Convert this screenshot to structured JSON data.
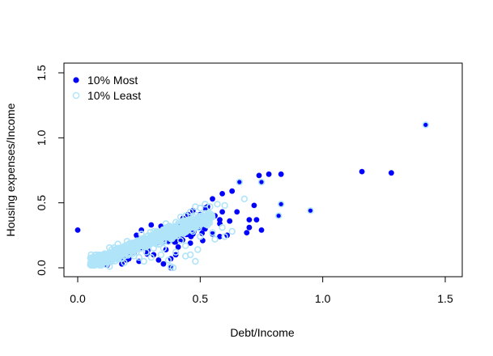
{
  "chart_data": {
    "type": "scatter",
    "title": "",
    "xlabel": "Debt/Income",
    "ylabel": "Housing expenses/Income",
    "xlim": [
      0.0,
      1.5
    ],
    "ylim": [
      0.0,
      1.5
    ],
    "xticks": [
      "0.0",
      "0.5",
      "1.0",
      "1.5"
    ],
    "yticks": [
      "0.0",
      "0.5",
      "1.0",
      "1.5"
    ],
    "grid": false,
    "legend_position": "top-left",
    "series": [
      {
        "name": "10% Most",
        "marker": "filled-circle",
        "color": "#0000ff",
        "points": [
          [
            0.0,
            0.29
          ],
          [
            1.42,
            1.1
          ],
          [
            1.28,
            0.73
          ],
          [
            1.16,
            0.74
          ],
          [
            0.95,
            0.44
          ],
          [
            0.83,
            0.72
          ],
          [
            0.83,
            0.49
          ],
          [
            0.82,
            0.4
          ],
          [
            0.78,
            0.72
          ],
          [
            0.74,
            0.71
          ],
          [
            0.75,
            0.66
          ],
          [
            0.75,
            0.29
          ],
          [
            0.73,
            0.37
          ],
          [
            0.72,
            0.48
          ],
          [
            0.7,
            0.37
          ],
          [
            0.7,
            0.31
          ],
          [
            0.69,
            0.27
          ],
          [
            0.66,
            0.66
          ],
          [
            0.65,
            0.43
          ],
          [
            0.63,
            0.59
          ],
          [
            0.62,
            0.36
          ],
          [
            0.61,
            0.25
          ],
          [
            0.59,
            0.57
          ],
          [
            0.59,
            0.43
          ],
          [
            0.58,
            0.37
          ],
          [
            0.58,
            0.34
          ],
          [
            0.58,
            0.24
          ],
          [
            0.56,
            0.4
          ],
          [
            0.55,
            0.53
          ],
          [
            0.55,
            0.26
          ],
          [
            0.53,
            0.47
          ],
          [
            0.52,
            0.46
          ],
          [
            0.52,
            0.3
          ],
          [
            0.51,
            0.21
          ],
          [
            0.5,
            0.41
          ],
          [
            0.49,
            0.36
          ],
          [
            0.48,
            0.32
          ],
          [
            0.47,
            0.26
          ],
          [
            0.46,
            0.19
          ],
          [
            0.45,
            0.41
          ],
          [
            0.44,
            0.35
          ],
          [
            0.43,
            0.28
          ],
          [
            0.42,
            0.22
          ],
          [
            0.41,
            0.33
          ],
          [
            0.41,
            0.16
          ],
          [
            0.4,
            0.1
          ],
          [
            0.4,
            0.2
          ],
          [
            0.39,
            0.27
          ],
          [
            0.38,
            0.0
          ],
          [
            0.38,
            0.07
          ],
          [
            0.36,
            0.14
          ],
          [
            0.35,
            0.03
          ],
          [
            0.33,
            0.06
          ],
          [
            0.31,
            0.1
          ],
          [
            0.3,
            0.33
          ],
          [
            0.29,
            0.22
          ],
          [
            0.26,
            0.29
          ],
          [
            0.25,
            0.05
          ],
          [
            0.24,
            0.25
          ],
          [
            0.22,
            0.18
          ],
          [
            0.21,
            0.12
          ],
          [
            0.2,
            0.06
          ],
          [
            0.18,
            0.03
          ],
          [
            0.16,
            0.08
          ],
          [
            0.12,
            0.02
          ],
          [
            0.1,
            0.04
          ],
          [
            0.07,
            0.04
          ],
          [
            0.34,
            0.32
          ],
          [
            0.43,
            0.38
          ],
          [
            0.47,
            0.44
          ]
        ]
      },
      {
        "name": "10% Least",
        "marker": "open-circle",
        "color": "#b0e4f8",
        "points": [
          [
            1.42,
            1.1
          ],
          [
            0.95,
            0.44
          ],
          [
            0.83,
            0.49
          ],
          [
            0.82,
            0.4
          ],
          [
            0.75,
            0.66
          ],
          [
            0.66,
            0.66
          ],
          [
            0.68,
            0.53
          ],
          [
            0.6,
            0.48
          ],
          [
            0.57,
            0.49
          ],
          [
            0.54,
            0.47
          ],
          [
            0.52,
            0.49
          ],
          [
            0.5,
            0.46
          ],
          [
            0.48,
            0.47
          ],
          [
            0.46,
            0.43
          ],
          [
            0.44,
            0.4
          ],
          [
            0.42,
            0.39
          ],
          [
            0.45,
            0.33
          ],
          [
            0.42,
            0.3
          ],
          [
            0.4,
            0.35
          ],
          [
            0.38,
            0.31
          ],
          [
            0.36,
            0.34
          ],
          [
            0.35,
            0.29
          ],
          [
            0.33,
            0.26
          ],
          [
            0.31,
            0.28
          ],
          [
            0.3,
            0.24
          ],
          [
            0.29,
            0.2
          ],
          [
            0.27,
            0.22
          ],
          [
            0.26,
            0.18
          ],
          [
            0.24,
            0.2
          ],
          [
            0.23,
            0.16
          ],
          [
            0.22,
            0.14
          ],
          [
            0.21,
            0.11
          ],
          [
            0.2,
            0.15
          ],
          [
            0.19,
            0.09
          ],
          [
            0.17,
            0.11
          ],
          [
            0.16,
            0.07
          ],
          [
            0.14,
            0.05
          ],
          [
            0.13,
            0.08
          ],
          [
            0.12,
            0.04
          ],
          [
            0.1,
            0.03
          ],
          [
            0.09,
            0.06
          ],
          [
            0.08,
            0.03
          ],
          [
            0.06,
            0.04
          ],
          [
            0.6,
            0.24
          ],
          [
            0.63,
            0.28
          ],
          [
            0.59,
            0.31
          ],
          [
            0.55,
            0.27
          ],
          [
            0.52,
            0.34
          ],
          [
            0.56,
            0.22
          ],
          [
            0.48,
            0.05
          ],
          [
            0.44,
            0.09
          ],
          [
            0.4,
            0.12
          ],
          [
            0.37,
            0.06
          ],
          [
            0.38,
            0.01
          ],
          [
            0.39,
            0.0
          ],
          [
            0.34,
            0.1
          ],
          [
            0.33,
            0.18
          ],
          [
            0.28,
            0.12
          ],
          [
            0.25,
            0.08
          ],
          [
            0.19,
            0.04
          ],
          [
            0.13,
            0.01
          ],
          [
            0.42,
            0.21
          ],
          [
            0.44,
            0.17
          ],
          [
            0.37,
            0.2
          ],
          [
            0.31,
            0.15
          ],
          [
            0.27,
            0.05
          ],
          [
            0.47,
            0.28
          ],
          [
            0.5,
            0.24
          ],
          [
            0.49,
            0.14
          ],
          [
            0.46,
            0.1
          ],
          [
            0.36,
            0.25
          ],
          [
            0.26,
            0.26
          ],
          [
            0.32,
            0.22
          ],
          [
            0.41,
            0.27
          ],
          [
            0.35,
            0.15
          ],
          [
            0.3,
            0.08
          ],
          [
            0.24,
            0.12
          ],
          [
            0.18,
            0.07
          ],
          [
            0.15,
            0.1
          ],
          [
            0.23,
            0.09
          ]
        ],
        "dense_cluster": {
          "description_center": [
            0.3,
            0.18
          ],
          "x_range": [
            0.05,
            0.55
          ],
          "y_range": [
            0.02,
            0.45
          ],
          "slope": 0.72
        }
      }
    ]
  }
}
